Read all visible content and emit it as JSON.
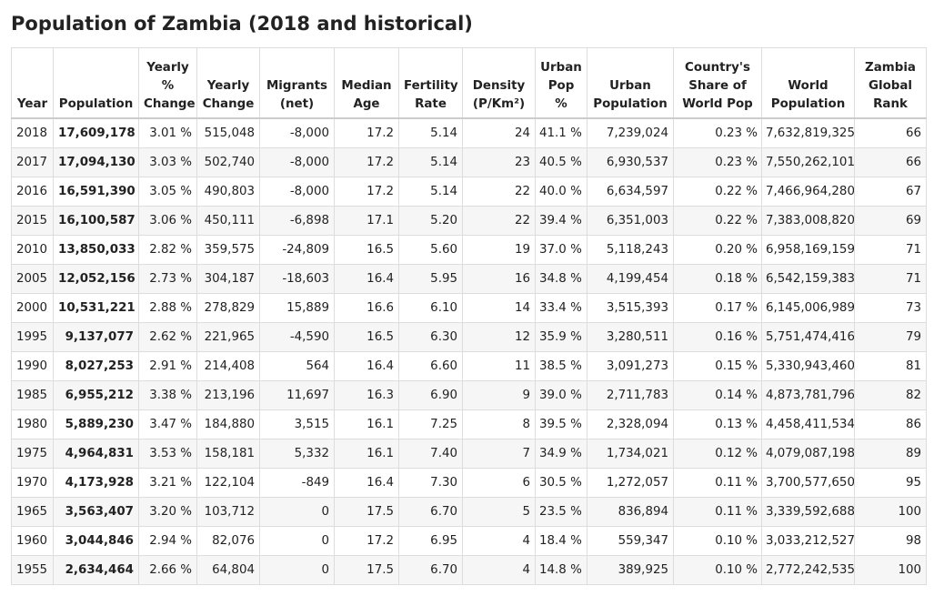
{
  "title": "Population of Zambia (2018 and historical)",
  "columns": [
    "Year",
    "Population",
    "Yearly % Change",
    "Yearly Change",
    "Migrants (net)",
    "Median Age",
    "Fertility Rate",
    "Density (P/Km²)",
    "Urban Pop %",
    "Urban Population",
    "Country's Share of World Pop",
    "World Population",
    "Zambia Global Rank"
  ],
  "rows": [
    [
      "2018",
      "17,609,178",
      "3.01 %",
      "515,048",
      "-8,000",
      "17.2",
      "5.14",
      "24",
      "41.1 %",
      "7,239,024",
      "0.23 %",
      "7,632,819,325",
      "66"
    ],
    [
      "2017",
      "17,094,130",
      "3.03 %",
      "502,740",
      "-8,000",
      "17.2",
      "5.14",
      "23",
      "40.5 %",
      "6,930,537",
      "0.23 %",
      "7,550,262,101",
      "66"
    ],
    [
      "2016",
      "16,591,390",
      "3.05 %",
      "490,803",
      "-8,000",
      "17.2",
      "5.14",
      "22",
      "40.0 %",
      "6,634,597",
      "0.22 %",
      "7,466,964,280",
      "67"
    ],
    [
      "2015",
      "16,100,587",
      "3.06 %",
      "450,111",
      "-6,898",
      "17.1",
      "5.20",
      "22",
      "39.4 %",
      "6,351,003",
      "0.22 %",
      "7,383,008,820",
      "69"
    ],
    [
      "2010",
      "13,850,033",
      "2.82 %",
      "359,575",
      "-24,809",
      "16.5",
      "5.60",
      "19",
      "37.0 %",
      "5,118,243",
      "0.20 %",
      "6,958,169,159",
      "71"
    ],
    [
      "2005",
      "12,052,156",
      "2.73 %",
      "304,187",
      "-18,603",
      "16.4",
      "5.95",
      "16",
      "34.8 %",
      "4,199,454",
      "0.18 %",
      "6,542,159,383",
      "71"
    ],
    [
      "2000",
      "10,531,221",
      "2.88 %",
      "278,829",
      "15,889",
      "16.6",
      "6.10",
      "14",
      "33.4 %",
      "3,515,393",
      "0.17 %",
      "6,145,006,989",
      "73"
    ],
    [
      "1995",
      "9,137,077",
      "2.62 %",
      "221,965",
      "-4,590",
      "16.5",
      "6.30",
      "12",
      "35.9 %",
      "3,280,511",
      "0.16 %",
      "5,751,474,416",
      "79"
    ],
    [
      "1990",
      "8,027,253",
      "2.91 %",
      "214,408",
      "564",
      "16.4",
      "6.60",
      "11",
      "38.5 %",
      "3,091,273",
      "0.15 %",
      "5,330,943,460",
      "81"
    ],
    [
      "1985",
      "6,955,212",
      "3.38 %",
      "213,196",
      "11,697",
      "16.3",
      "6.90",
      "9",
      "39.0 %",
      "2,711,783",
      "0.14 %",
      "4,873,781,796",
      "82"
    ],
    [
      "1980",
      "5,889,230",
      "3.47 %",
      "184,880",
      "3,515",
      "16.1",
      "7.25",
      "8",
      "39.5 %",
      "2,328,094",
      "0.13 %",
      "4,458,411,534",
      "86"
    ],
    [
      "1975",
      "4,964,831",
      "3.53 %",
      "158,181",
      "5,332",
      "16.1",
      "7.40",
      "7",
      "34.9 %",
      "1,734,021",
      "0.12 %",
      "4,079,087,198",
      "89"
    ],
    [
      "1970",
      "4,173,928",
      "3.21 %",
      "122,104",
      "-849",
      "16.4",
      "7.30",
      "6",
      "30.5 %",
      "1,272,057",
      "0.11 %",
      "3,700,577,650",
      "95"
    ],
    [
      "1965",
      "3,563,407",
      "3.20 %",
      "103,712",
      "0",
      "17.5",
      "6.70",
      "5",
      "23.5 %",
      "836,894",
      "0.11 %",
      "3,339,592,688",
      "100"
    ],
    [
      "1960",
      "3,044,846",
      "2.94 %",
      "82,076",
      "0",
      "17.2",
      "6.95",
      "4",
      "18.4 %",
      "559,347",
      "0.10 %",
      "3,033,212,527",
      "98"
    ],
    [
      "1955",
      "2,634,464",
      "2.66 %",
      "64,804",
      "0",
      "17.5",
      "6.70",
      "4",
      "14.8 %",
      "389,925",
      "0.10 %",
      "2,772,242,535",
      "100"
    ]
  ]
}
